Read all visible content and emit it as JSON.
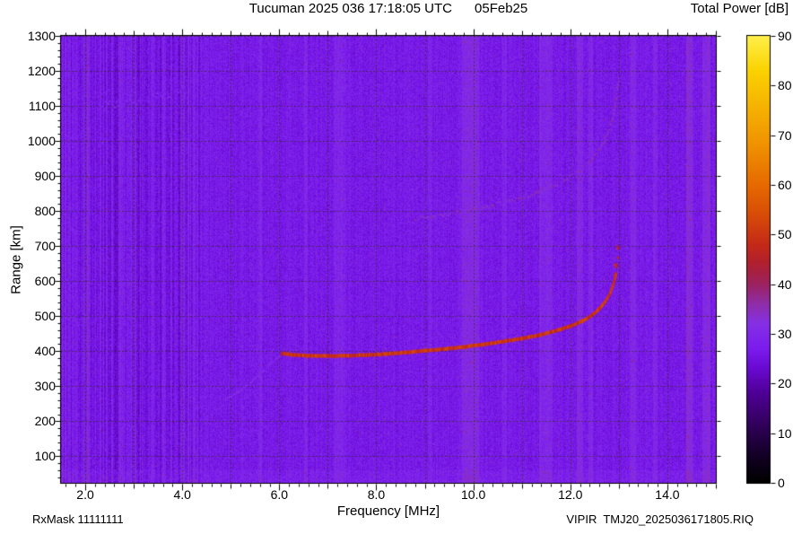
{
  "footer": {
    "left": "RxMask 11111111",
    "right": "VIPIR  TMJ20_2025036171805.RIQ"
  },
  "chart_data": {
    "type": "heatmap",
    "title": "Tucuman 2025 036 17:18:05 UTC      05Feb25",
    "xlabel": "Frequency [MHz]",
    "ylabel": "Range [km]",
    "x_range": [
      1.5,
      15.0
    ],
    "y_range": [
      24,
      1300
    ],
    "x_tick_values": [
      2,
      4,
      6,
      8,
      10,
      12,
      14
    ],
    "x_tick_labels": [
      "2.0",
      "4.0",
      "6.0",
      "8.0",
      "10.0",
      "12.0",
      "14.0"
    ],
    "y_tick_values": [
      100,
      200,
      300,
      400,
      500,
      600,
      700,
      800,
      900,
      1000,
      1100,
      1200,
      1300
    ],
    "y_tick_labels": [
      "100",
      "200",
      "300",
      "400",
      "500",
      "600",
      "700",
      "800",
      "900",
      "1000",
      "1100",
      "1200",
      "1300"
    ],
    "grid": {
      "x_step_mhz": 1,
      "y_step_km": 100,
      "color": "#2a3000",
      "alpha": 0.55
    },
    "colorbar": {
      "label": "Total Power [dB]",
      "range": [
        0,
        90
      ],
      "tick_values": [
        0,
        10,
        20,
        30,
        40,
        50,
        60,
        70,
        80,
        90
      ],
      "tick_labels": [
        "0",
        "10",
        "20",
        "30",
        "40",
        "50",
        "60",
        "70",
        "80",
        "90"
      ]
    },
    "colormap": [
      [
        0,
        "#000000"
      ],
      [
        6,
        "#16002a"
      ],
      [
        12,
        "#33005e"
      ],
      [
        18,
        "#4f0096"
      ],
      [
        23,
        "#6a0ad2"
      ],
      [
        27,
        "#7b1cee"
      ],
      [
        32,
        "#8530e6"
      ],
      [
        36,
        "#8f2ea8"
      ],
      [
        40,
        "#9c2260"
      ],
      [
        44,
        "#b02030"
      ],
      [
        48,
        "#c52a18"
      ],
      [
        54,
        "#d84d08"
      ],
      [
        60,
        "#e66a00"
      ],
      [
        68,
        "#f09200"
      ],
      [
        76,
        "#f6b400"
      ],
      [
        83,
        "#fbd200"
      ],
      [
        90,
        "#fff04a"
      ]
    ],
    "background": {
      "base_db": 26.8,
      "pixel_noise_db": 3.2,
      "column_noise_db": 1.2,
      "column_noise_low_freq_db": 3.5,
      "low_freq_cutoff_mhz": 4.4
    },
    "rfi_stripes": [
      {
        "f": 2.05,
        "w": 0.08,
        "d": 3.5
      },
      {
        "f": 2.65,
        "w": 0.07,
        "d": -3
      },
      {
        "f": 3.1,
        "w": 0.06,
        "d": -2.5
      },
      {
        "f": 3.55,
        "w": 0.06,
        "d": -2.5
      },
      {
        "f": 3.95,
        "w": 0.05,
        "d": -2
      },
      {
        "f": 5.6,
        "w": 0.07,
        "d": 2.5
      },
      {
        "f": 6.55,
        "w": 0.07,
        "d": 2.5
      },
      {
        "f": 7.25,
        "w": 0.22,
        "d": 2.5
      },
      {
        "f": 9.1,
        "w": 0.08,
        "d": 2
      },
      {
        "f": 9.95,
        "w": 0.35,
        "d": 4
      },
      {
        "f": 10.65,
        "w": 0.1,
        "d": 2.5
      },
      {
        "f": 11.5,
        "w": 0.28,
        "d": 3
      },
      {
        "f": 12.2,
        "w": 0.12,
        "d": 4
      },
      {
        "f": 12.42,
        "w": 0.1,
        "d": 3
      },
      {
        "f": 13.3,
        "w": 0.12,
        "d": 4
      },
      {
        "f": 13.75,
        "w": 0.1,
        "d": 3
      },
      {
        "f": 14.45,
        "w": 0.12,
        "d": 5
      },
      {
        "f": 14.8,
        "w": 0.16,
        "d": 4.5
      }
    ],
    "traces": [
      {
        "name": "F-region echo 1st hop",
        "power_db": 50,
        "jitter_db": 4,
        "dot": [
          2,
          4
        ],
        "density": 1.0,
        "spread_km": 1,
        "points": [
          [
            6.05,
            393
          ],
          [
            6.3,
            389
          ],
          [
            6.6,
            387
          ],
          [
            7.0,
            386
          ],
          [
            7.4,
            387
          ],
          [
            7.8,
            389
          ],
          [
            8.2,
            392
          ],
          [
            8.6,
            396
          ],
          [
            9.0,
            401
          ],
          [
            9.4,
            406
          ],
          [
            9.8,
            412
          ],
          [
            10.2,
            419
          ],
          [
            10.6,
            427
          ],
          [
            11.0,
            436
          ],
          [
            11.4,
            447
          ],
          [
            11.7,
            458
          ],
          [
            12.0,
            471
          ],
          [
            12.25,
            486
          ],
          [
            12.45,
            503
          ],
          [
            12.6,
            521
          ],
          [
            12.72,
            541
          ],
          [
            12.82,
            565
          ],
          [
            12.89,
            592
          ],
          [
            12.94,
            620
          ]
        ]
      },
      {
        "name": "F-trace asymptote scatter",
        "power_db": 47,
        "jitter_db": 4,
        "dot": [
          2,
          2
        ],
        "density": 0.45,
        "spread_km": 35,
        "points": [
          [
            12.9,
            610
          ],
          [
            12.94,
            645
          ],
          [
            12.97,
            675
          ],
          [
            13.0,
            700
          ]
        ]
      },
      {
        "name": "F-region echo 2nd hop (faint)",
        "power_db": 34,
        "jitter_db": 2.5,
        "dot": [
          2,
          2
        ],
        "density": 0.7,
        "spread_km": 5,
        "points": [
          [
            8.8,
            778
          ],
          [
            9.2,
            786
          ],
          [
            9.6,
            794
          ],
          [
            10.0,
            804
          ],
          [
            10.4,
            816
          ],
          [
            10.8,
            830
          ],
          [
            11.2,
            847
          ],
          [
            11.6,
            868
          ],
          [
            11.9,
            890
          ],
          [
            12.2,
            916
          ],
          [
            12.45,
            948
          ],
          [
            12.65,
            985
          ],
          [
            12.8,
            1030
          ],
          [
            12.9,
            1080
          ],
          [
            12.96,
            1135
          ],
          [
            13.0,
            1175
          ]
        ]
      },
      {
        "name": "E-F cusp (faint)",
        "power_db": 31,
        "jitter_db": 2,
        "dot": [
          2,
          2
        ],
        "density": 0.8,
        "spread_km": 3,
        "points": [
          [
            4.9,
            262
          ],
          [
            5.15,
            284
          ],
          [
            5.4,
            310
          ],
          [
            5.6,
            334
          ],
          [
            5.78,
            357
          ],
          [
            5.92,
            375
          ],
          [
            6.02,
            388
          ]
        ]
      },
      {
        "name": "spread echo near 1100 km (faint)",
        "power_db": 30.5,
        "jitter_db": 2,
        "dot": [
          2,
          2
        ],
        "density": 0.5,
        "spread_km": 12,
        "points": [
          [
            2.2,
            1096
          ],
          [
            2.7,
            1106
          ],
          [
            3.2,
            1118
          ],
          [
            3.7,
            1132
          ],
          [
            4.15,
            1148
          ]
        ]
      }
    ]
  }
}
